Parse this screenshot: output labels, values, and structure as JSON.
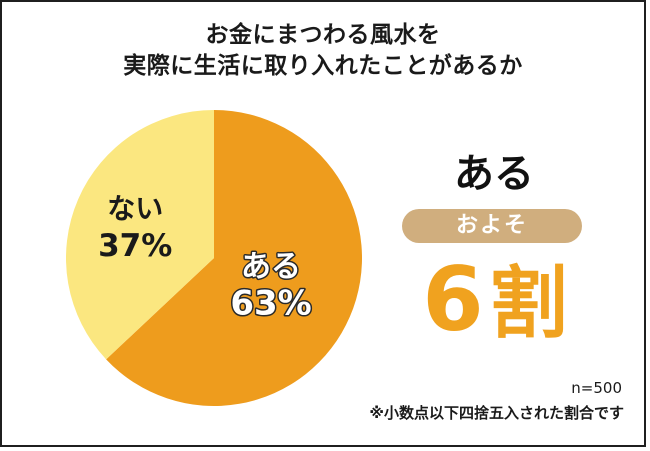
{
  "chart_data": {
    "type": "pie",
    "title_lines": [
      "お金にまつわる風水を",
      "実際に生活に取り入れたことがあるか"
    ],
    "categories": [
      "ある",
      "ない"
    ],
    "values": [
      63,
      37
    ],
    "value_labels": [
      "63%",
      "37%"
    ],
    "colors": [
      "#ee9c1d",
      "#fbe780"
    ]
  },
  "summary": {
    "headline": "ある",
    "pill": "およそ",
    "big_number": "6",
    "big_unit": "割",
    "accent_color": "#f0a21f",
    "pill_color": "#d0ae7e"
  },
  "footer": {
    "sample_size": "n=500",
    "note": "※小数点以下四捨五入された割合です"
  }
}
